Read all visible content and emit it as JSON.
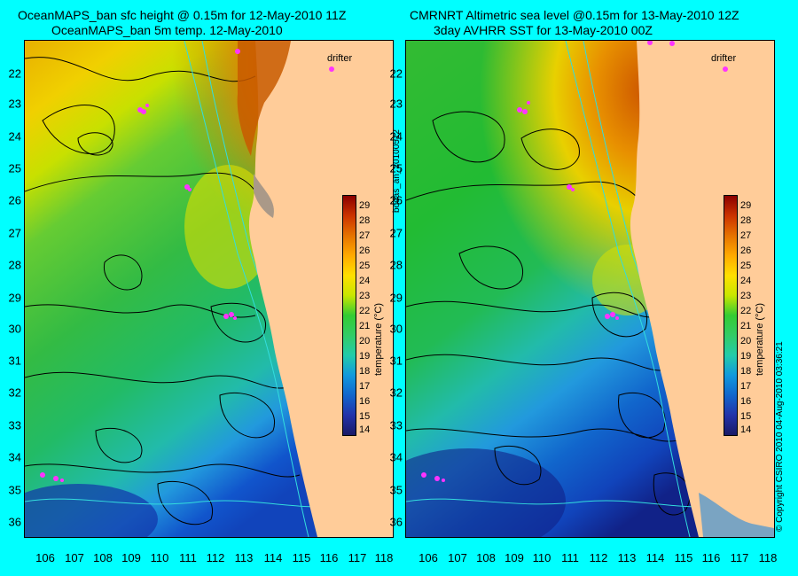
{
  "left": {
    "title_line1": "OceanMAPS_ban sfc height @ 0.15m for 12-May-2010 11Z",
    "title_line2": "OceanMAPS_ban 5m temp. 12-May-2010",
    "drifter_label": "drifter"
  },
  "right": {
    "title_line1": "CMRNRT Altimetric sea level  @0.15m  for 13-May-2010 12Z",
    "title_line2": "3day AVHRR SST for 13-May-2010 00Z",
    "drifter_label": "drifter"
  },
  "side_label": "bodas_an_20100512",
  "copyright": "© Copyright CSIRO 2010   04-Aug-2010 03:36:21",
  "latitude_ticks": [
    "22",
    "23",
    "24",
    "25",
    "26",
    "27",
    "28",
    "29",
    "30",
    "31",
    "32",
    "33",
    "34",
    "35",
    "36"
  ],
  "longitude_ticks": [
    "106",
    "107",
    "108",
    "109",
    "110",
    "111",
    "112",
    "113",
    "114",
    "115",
    "116",
    "117",
    "118"
  ],
  "colorbar": {
    "label": "temperature (°C)",
    "ticks": [
      "29",
      "28",
      "27",
      "26",
      "25",
      "24",
      "23",
      "22",
      "21",
      "20",
      "19",
      "18",
      "17",
      "16",
      "15",
      "14"
    ],
    "range": [
      13.5,
      29.5
    ]
  },
  "colors": {
    "background": "#00ffff",
    "land": "#ffcc99",
    "drifter": "#ff33ff",
    "contour": "#000000",
    "bathymetry": "#33dddd"
  }
}
